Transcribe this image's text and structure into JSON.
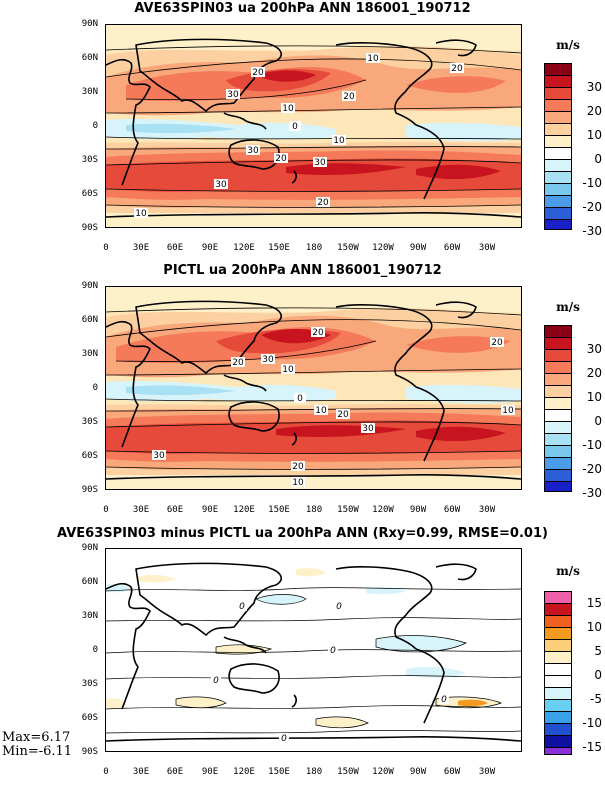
{
  "panels": [
    {
      "title": "AVE63SPIN03 ua 200hPa ANN 186001_190712",
      "units": "m/s",
      "colorbar_labels": [
        "30",
        "20",
        "10",
        "0",
        "-10",
        "-20",
        "-30"
      ],
      "colorbar_colors": [
        "#8b0015",
        "#c8141e",
        "#e64a3a",
        "#f47a5a",
        "#f9a87c",
        "#fcd0a0",
        "#fef0c8",
        "#ffffff",
        "#d8f4fb",
        "#a8e0f4",
        "#78c8ee",
        "#4a9de6",
        "#2a5fd8",
        "#1a20c8"
      ],
      "contour_labels": [
        "10",
        "20",
        "30",
        "20",
        "10",
        "0",
        "20",
        "30",
        "10",
        "20",
        "30",
        "20",
        "10",
        "30"
      ]
    },
    {
      "title": "PICTL ua 200hPa ANN 186001_190712",
      "units": "m/s",
      "colorbar_labels": [
        "30",
        "20",
        "10",
        "0",
        "-10",
        "-20",
        "-30"
      ],
      "colorbar_colors": [
        "#8b0015",
        "#c8141e",
        "#e64a3a",
        "#f47a5a",
        "#f9a87c",
        "#fcd0a0",
        "#fef0c8",
        "#ffffff",
        "#d8f4fb",
        "#a8e0f4",
        "#78c8ee",
        "#4a9de6",
        "#2a5fd8",
        "#1a20c8"
      ],
      "contour_labels": [
        "20",
        "30",
        "20",
        "10",
        "0",
        "10",
        "20",
        "10",
        "20",
        "30",
        "30",
        "20",
        "10"
      ]
    },
    {
      "title": "AVE63SPIN03 minus PICTL ua 200hPa ANN (Rxy=0.99, RMSE=0.01)",
      "units": "m/s",
      "colorbar_labels": [
        "15",
        "10",
        "5",
        "0",
        "-5",
        "-10",
        "-15"
      ],
      "colorbar_colors": [
        "#f060a8",
        "#c8141e",
        "#f06020",
        "#f49a20",
        "#fcd07a",
        "#fef0c8",
        "#ffffff",
        "#ffffff",
        "#d8f4fb",
        "#68d0f0",
        "#3aa0e8",
        "#2050d0",
        "#1010a0",
        "#8a30d8"
      ],
      "contour_labels": [
        "0",
        "0",
        "0",
        "0",
        "0",
        "0"
      ]
    }
  ],
  "lat_labels": [
    "90N",
    "60N",
    "30N",
    "0",
    "30S",
    "60S",
    "90S"
  ],
  "lon_labels": [
    "0",
    "30E",
    "60E",
    "90E",
    "120E",
    "150E",
    "180",
    "150W",
    "120W",
    "90W",
    "60W",
    "30W"
  ],
  "stats": {
    "max": "Max=6.17",
    "min": "Min=-6.11"
  }
}
